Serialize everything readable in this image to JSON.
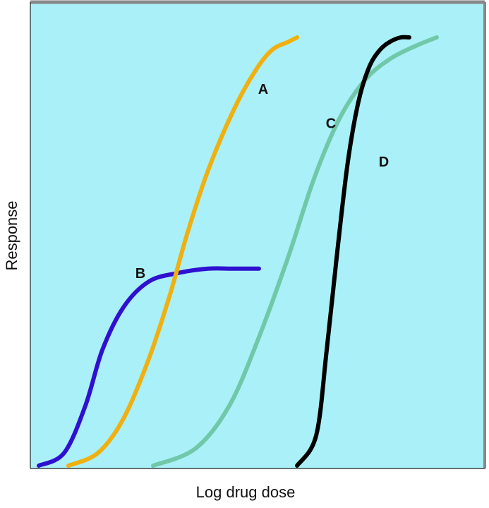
{
  "chart_data": {
    "type": "line",
    "title": "",
    "xlabel": "Log drug dose",
    "ylabel": "Response",
    "x_scale": "log",
    "xlim": [
      0,
      10
    ],
    "ylim": [
      0,
      10
    ],
    "grid": false,
    "legend": "none",
    "background_color": "#aaf0f8",
    "frame_color": "#888888",
    "series": [
      {
        "name": "A",
        "color": "#f0b010",
        "x": [
          0.7,
          1.4,
          2.0,
          2.6,
          3.1,
          3.5,
          4.0,
          4.6,
          5.1,
          5.5,
          5.9,
          6.1
        ],
        "y": [
          0.0,
          0.3,
          1.1,
          2.5,
          4.0,
          5.4,
          6.9,
          8.3,
          9.2,
          9.7,
          9.9,
          10.0
        ]
      },
      {
        "name": "B",
        "color": "#3010d0",
        "x": [
          0.0,
          0.6,
          1.1,
          1.5,
          2.0,
          2.6,
          3.3,
          4.0,
          4.6,
          5.2
        ],
        "y": [
          0.0,
          0.3,
          1.4,
          2.7,
          3.7,
          4.3,
          4.5,
          4.6,
          4.6,
          4.6
        ]
      },
      {
        "name": "C",
        "color": "#70c8a8",
        "x": [
          2.7,
          3.7,
          4.5,
          5.2,
          5.9,
          6.5,
          7.1,
          7.7,
          8.3,
          8.9,
          9.4
        ],
        "y": [
          0.0,
          0.4,
          1.4,
          3.0,
          4.9,
          6.7,
          8.1,
          9.0,
          9.5,
          9.8,
          10.0
        ]
      },
      {
        "name": "D",
        "color": "#000000",
        "x": [
          6.1,
          6.55,
          6.8,
          7.05,
          7.3,
          7.55,
          7.8,
          8.05,
          8.3,
          8.55,
          8.75
        ],
        "y": [
          0.0,
          0.7,
          2.7,
          5.0,
          7.1,
          8.5,
          9.3,
          9.7,
          9.9,
          10.0,
          10.0
        ]
      }
    ],
    "annotations": [
      {
        "text": "A",
        "series": "A",
        "x": 5.3,
        "y": 8.8
      },
      {
        "text": "B",
        "series": "B",
        "x": 2.4,
        "y": 4.5
      },
      {
        "text": "C",
        "series": "C",
        "x": 6.9,
        "y": 8.0
      },
      {
        "text": "D",
        "series": "D",
        "x": 8.15,
        "y": 7.1
      }
    ]
  }
}
